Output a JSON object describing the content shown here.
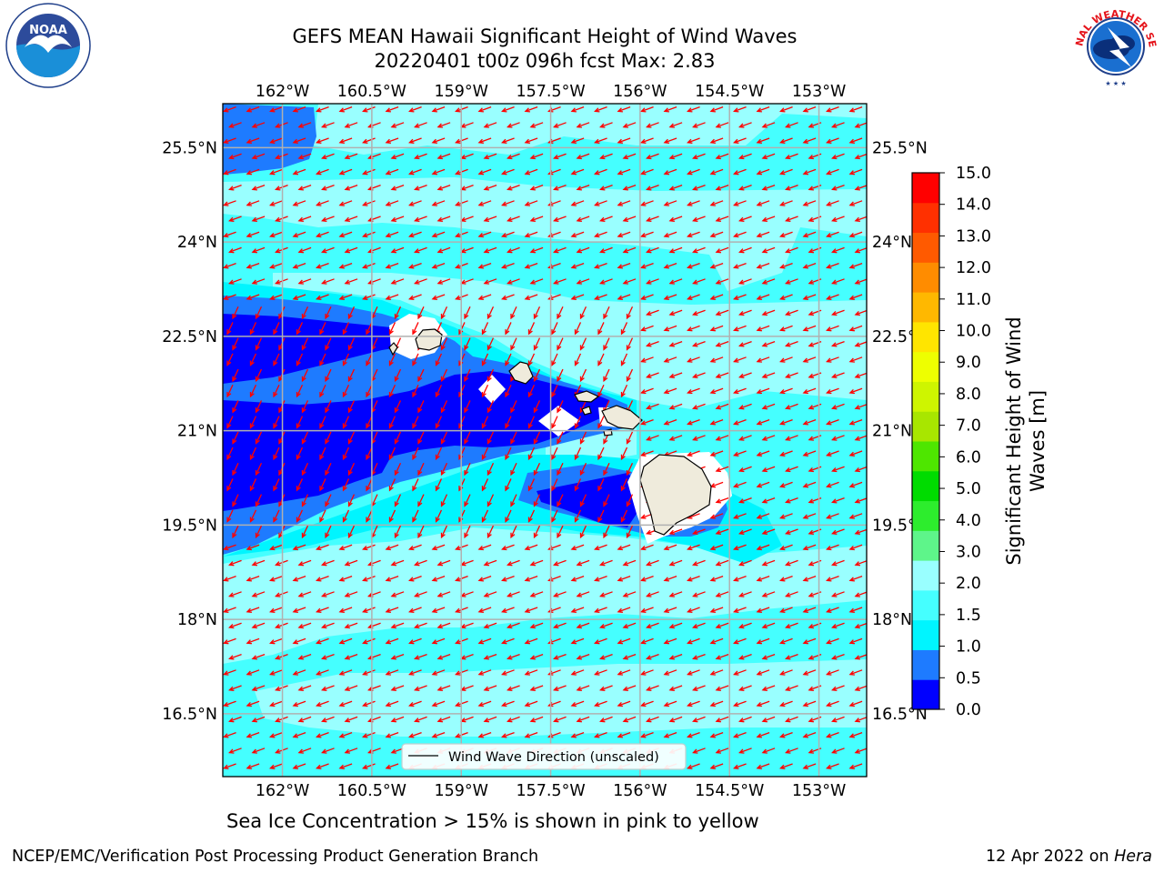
{
  "title": {
    "line1": "GEFS MEAN Hawaii Significant Height of Wind Waves",
    "line2": "20220401 t00z 096h fcst   Max: 2.83"
  },
  "note": "Sea Ice Concentration > 15% is shown in pink to yellow",
  "footer": {
    "left": "NCEP/EMC/Verification Post Processing Product Generation Branch",
    "right_prefix": "12 Apr 2022 on ",
    "right_italic": "Hera"
  },
  "logos": {
    "noaa_text": "NOAA",
    "noaa_ring": "NATIONAL OCEANIC AND ATMOSPHERIC ADMINISTRATION · U.S. DEPARTMENT OF COMMERCE",
    "nws_ring": "NATIONAL WEATHER SERVICE"
  },
  "map": {
    "lon_labels": [
      "162°W",
      "160.5°W",
      "159°W",
      "157.5°W",
      "156°W",
      "154.5°W",
      "153°W"
    ],
    "lat_labels": [
      "25.5°N",
      "24°N",
      "22.5°N",
      "21°N",
      "19.5°N",
      "18°N",
      "16.5°N"
    ],
    "lon_range": [
      -163,
      -152.2
    ],
    "lat_range": [
      15.5,
      26.2
    ],
    "legend_label": "Wind Wave Direction (unscaled)",
    "arrow_color": "#ff0000",
    "land_color": "#efebdc",
    "islands": [
      "Niihau",
      "Kauai",
      "Oahu",
      "Molokai",
      "Lanai",
      "Maui",
      "Kahoolawe",
      "Hawaii"
    ]
  },
  "colorbar": {
    "label": "Significant Height of Wind Waves [m]",
    "bounds": [
      "0.0",
      "0.5",
      "1.0",
      "1.5",
      "2.0",
      "3.0",
      "4.0",
      "5.0",
      "6.0",
      "7.0",
      "8.0",
      "9.0",
      "10.0",
      "11.0",
      "12.0",
      "13.0",
      "14.0",
      "15.0"
    ],
    "colors": [
      "#0000ff",
      "#1e7bff",
      "#00f5ff",
      "#45ffff",
      "#99ffff",
      "#5ef58a",
      "#2ded2d",
      "#00dc00",
      "#4ee600",
      "#a8e600",
      "#cef500",
      "#eeff00",
      "#ffe500",
      "#ffb800",
      "#ff8c00",
      "#ff5a00",
      "#ff3000",
      "#ff0000"
    ]
  }
}
